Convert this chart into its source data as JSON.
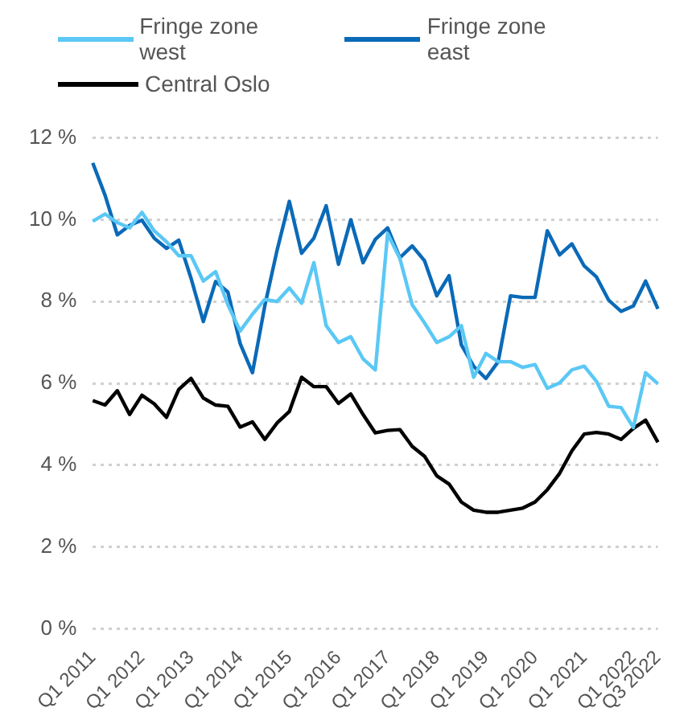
{
  "chart_data": {
    "type": "line",
    "categories": [
      "Q1 2011",
      null,
      null,
      null,
      "Q1 2012",
      null,
      null,
      null,
      "Q1 2013",
      null,
      null,
      null,
      "Q1 2014",
      null,
      null,
      null,
      "Q1 2015",
      null,
      null,
      null,
      "Q1 2016",
      null,
      null,
      null,
      "Q1 2017",
      null,
      null,
      null,
      "Q1 2018",
      null,
      null,
      null,
      "Q1 2019",
      null,
      null,
      null,
      "Q1 2020",
      null,
      null,
      null,
      "Q1 2021",
      null,
      null,
      null,
      "Q1 2022",
      null,
      "Q3 2022"
    ],
    "series": [
      {
        "name": "Fringe zone west",
        "color": "#5bc8f5",
        "values": [
          9.96,
          10.14,
          9.93,
          9.8,
          10.18,
          9.73,
          9.46,
          9.12,
          9.12,
          8.5,
          8.73,
          7.92,
          7.28,
          7.69,
          8.05,
          8.0,
          8.33,
          7.96,
          8.95,
          7.41,
          7.0,
          7.14,
          6.6,
          6.33,
          9.66,
          9.05,
          7.92,
          7.48,
          7.0,
          7.14,
          7.41,
          6.15,
          6.73,
          6.53,
          6.53,
          6.39,
          6.46,
          5.88,
          6.01,
          6.33,
          6.42,
          6.05,
          5.44,
          5.41,
          4.92,
          6.26,
          5.99
        ]
      },
      {
        "name": "Fringe zone east",
        "color": "#0a6ab8",
        "values": [
          11.39,
          10.6,
          9.63,
          9.86,
          9.99,
          9.55,
          9.3,
          9.5,
          8.57,
          7.51,
          8.49,
          8.23,
          6.97,
          6.26,
          7.89,
          9.25,
          10.45,
          9.18,
          9.55,
          10.34,
          8.91,
          10.0,
          8.95,
          9.52,
          9.8,
          9.07,
          9.36,
          9.0,
          8.14,
          8.63,
          6.94,
          6.42,
          6.12,
          6.53,
          8.14,
          8.1,
          8.1,
          9.73,
          9.14,
          9.41,
          8.87,
          8.6,
          8.03,
          7.76,
          7.89,
          8.5,
          7.82
        ]
      },
      {
        "name": "Central Oslo",
        "color": "#000000",
        "values": [
          5.58,
          5.47,
          5.82,
          5.24,
          5.71,
          5.5,
          5.17,
          5.85,
          6.12,
          5.64,
          5.47,
          5.44,
          4.93,
          5.06,
          4.63,
          5.03,
          5.31,
          6.15,
          5.92,
          5.92,
          5.51,
          5.74,
          5.24,
          4.79,
          4.85,
          4.87,
          4.46,
          4.22,
          3.74,
          3.54,
          3.1,
          2.9,
          2.85,
          2.85,
          2.9,
          2.95,
          3.1,
          3.4,
          3.8,
          4.35,
          4.76,
          4.8,
          4.76,
          4.63,
          4.9,
          5.1,
          4.56
        ]
      }
    ],
    "ylim": [
      0,
      12
    ],
    "yticks": [
      {
        "value": 0,
        "label": "0 %"
      },
      {
        "value": 2,
        "label": "2 %"
      },
      {
        "value": 4,
        "label": "4 %"
      },
      {
        "value": 6,
        "label": "6 %"
      },
      {
        "value": 8,
        "label": "8 %"
      },
      {
        "value": 10,
        "label": "10 %"
      },
      {
        "value": 12,
        "label": "12 %"
      }
    ],
    "grid": "y",
    "legend": "top",
    "marker": "none",
    "line_style": "solid"
  }
}
